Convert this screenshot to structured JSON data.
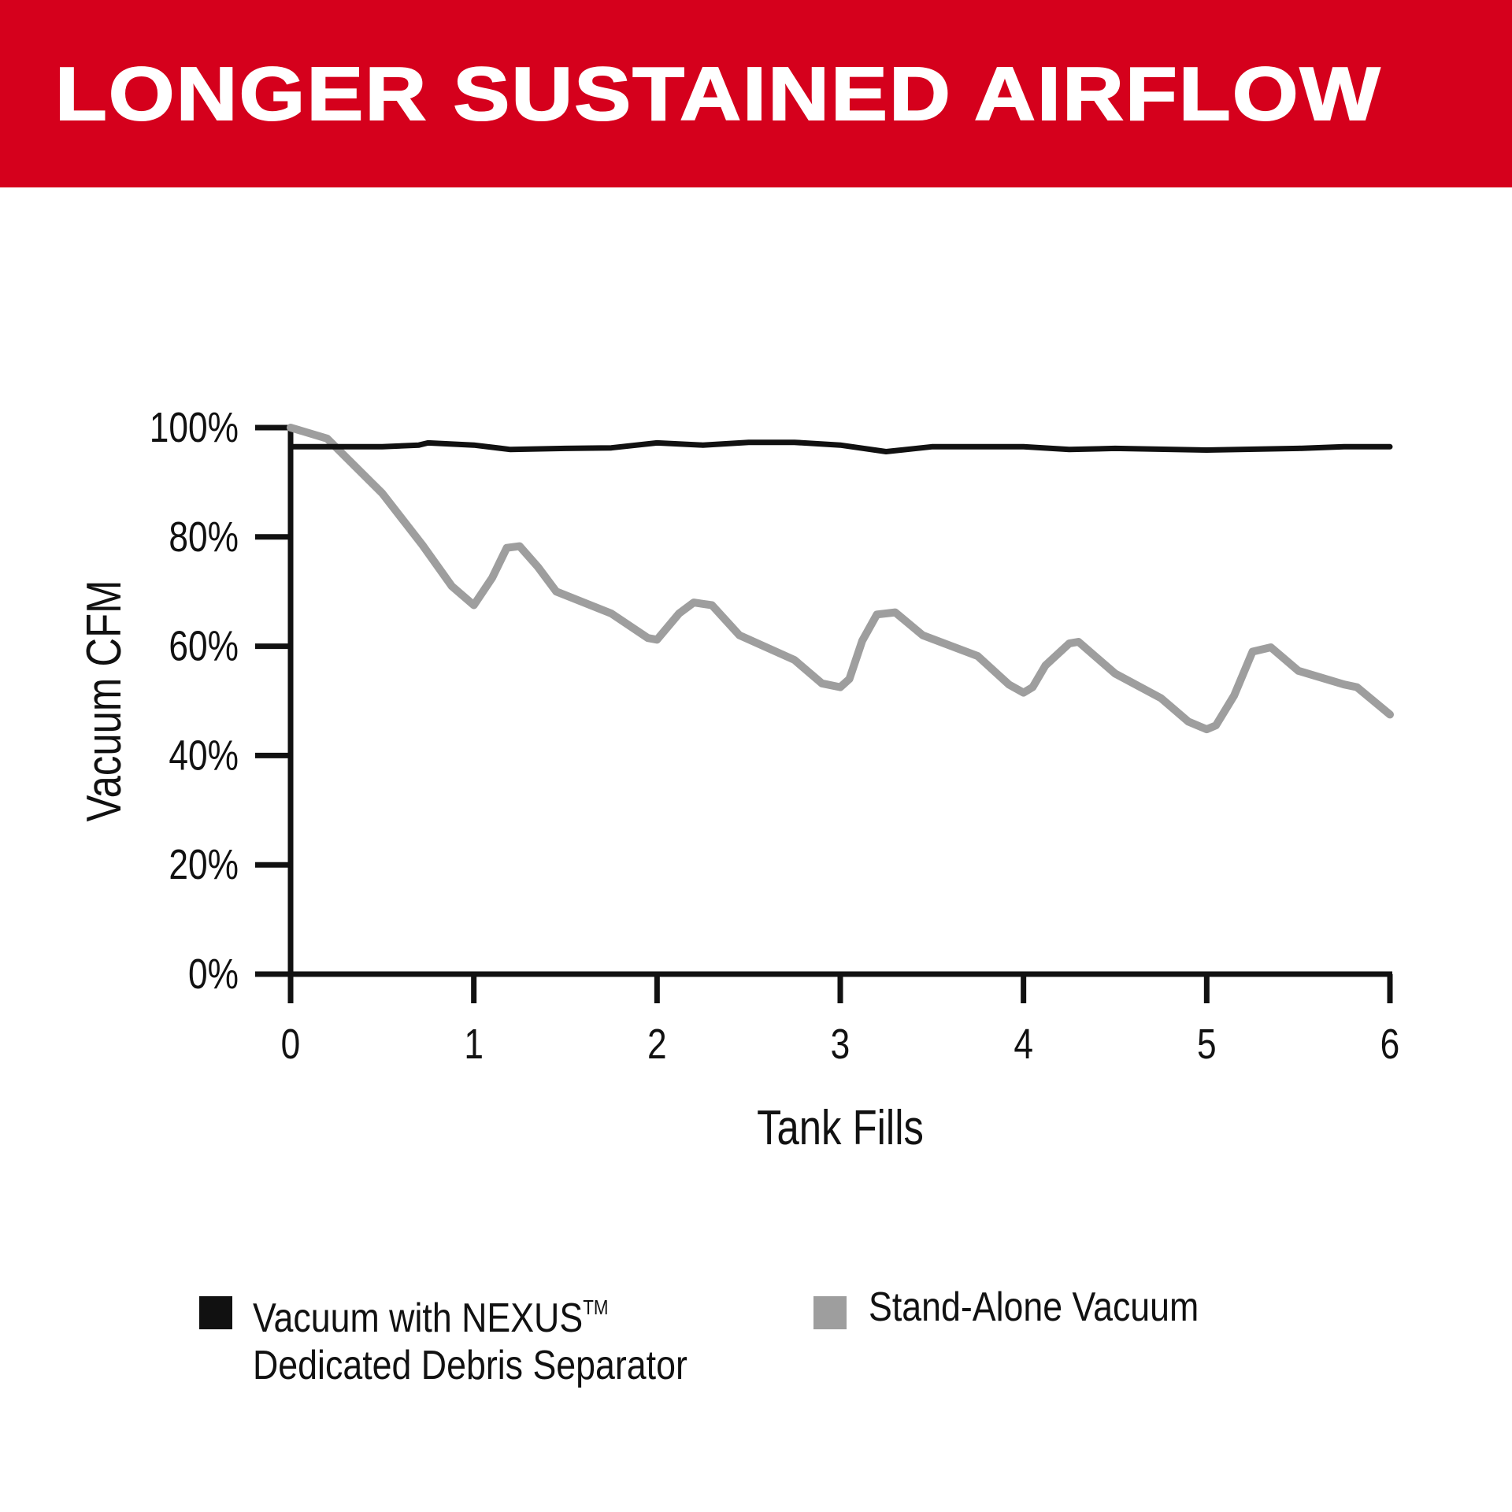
{
  "header": {
    "title": "LONGER SUSTAINED AIRFLOW"
  },
  "colors": {
    "banner": "#d5001c",
    "series_nexus": "#111111",
    "series_standalone": "#9e9e9e"
  },
  "chart_data": {
    "type": "line",
    "title": "LONGER SUSTAINED AIRFLOW",
    "xlabel": "Tank Fills",
    "ylabel": "Vacuum CFM",
    "xlim": [
      0,
      6
    ],
    "ylim": [
      0,
      100
    ],
    "x_ticks": [
      "0",
      "1",
      "2",
      "3",
      "4",
      "5",
      "6"
    ],
    "y_ticks": [
      "0%",
      "20%",
      "40%",
      "60%",
      "80%",
      "100%"
    ],
    "grid": false,
    "legend_position": "bottom",
    "series": [
      {
        "name": "Vacuum with NEXUS™ Dedicated Debris Separator",
        "color": "#111111",
        "points": [
          [
            0,
            96.5
          ],
          [
            0.5,
            96.5
          ],
          [
            0.7,
            96.8
          ],
          [
            0.75,
            97.2
          ],
          [
            1.0,
            96.8
          ],
          [
            1.2,
            96.0
          ],
          [
            1.5,
            96.2
          ],
          [
            1.75,
            96.3
          ],
          [
            2.0,
            97.2
          ],
          [
            2.25,
            96.8
          ],
          [
            2.5,
            97.3
          ],
          [
            2.75,
            97.3
          ],
          [
            3.0,
            96.8
          ],
          [
            3.25,
            95.6
          ],
          [
            3.5,
            96.5
          ],
          [
            4.0,
            96.5
          ],
          [
            4.25,
            96.0
          ],
          [
            4.5,
            96.2
          ],
          [
            5.0,
            95.9
          ],
          [
            5.5,
            96.2
          ],
          [
            5.75,
            96.5
          ],
          [
            6.0,
            96.5
          ]
        ]
      },
      {
        "name": "Stand-Alone Vacuum",
        "color": "#9e9e9e",
        "points": [
          [
            0,
            100
          ],
          [
            0.2,
            98
          ],
          [
            0.5,
            88
          ],
          [
            0.72,
            78.5
          ],
          [
            0.88,
            71
          ],
          [
            1.0,
            67.5
          ],
          [
            1.1,
            72.5
          ],
          [
            1.18,
            78
          ],
          [
            1.25,
            78.3
          ],
          [
            1.35,
            74.5
          ],
          [
            1.45,
            70
          ],
          [
            1.75,
            66
          ],
          [
            1.95,
            61.5
          ],
          [
            2.0,
            61.2
          ],
          [
            2.12,
            66
          ],
          [
            2.2,
            68
          ],
          [
            2.3,
            67.5
          ],
          [
            2.45,
            62
          ],
          [
            2.75,
            57.5
          ],
          [
            2.9,
            53.2
          ],
          [
            3.0,
            52.5
          ],
          [
            3.05,
            54
          ],
          [
            3.12,
            61
          ],
          [
            3.2,
            65.8
          ],
          [
            3.3,
            66.2
          ],
          [
            3.45,
            62
          ],
          [
            3.75,
            58.2
          ],
          [
            3.92,
            53
          ],
          [
            4.0,
            51.5
          ],
          [
            4.05,
            52.5
          ],
          [
            4.12,
            56.5
          ],
          [
            4.25,
            60.5
          ],
          [
            4.3,
            60.8
          ],
          [
            4.5,
            55
          ],
          [
            4.75,
            50.5
          ],
          [
            4.9,
            46.2
          ],
          [
            5.0,
            44.8
          ],
          [
            5.05,
            45.5
          ],
          [
            5.15,
            51
          ],
          [
            5.25,
            59
          ],
          [
            5.35,
            59.8
          ],
          [
            5.5,
            55.5
          ],
          [
            5.75,
            53
          ],
          [
            5.82,
            52.5
          ],
          [
            6.0,
            47.5
          ]
        ]
      }
    ]
  },
  "legend": {
    "items": [
      {
        "line1": "Vacuum with NEXUS",
        "tm": "TM",
        "line2": "Dedicated Debris Separator",
        "color": "#111111"
      },
      {
        "line1": "Stand-Alone Vacuum",
        "color": "#9e9e9e"
      }
    ]
  }
}
